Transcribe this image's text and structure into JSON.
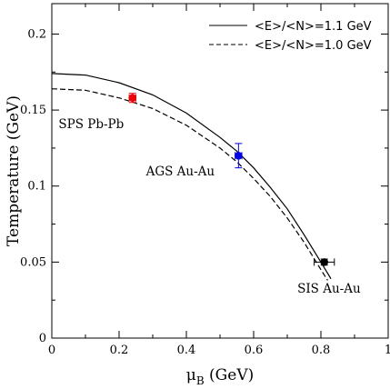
{
  "chart_data": {
    "type": "line",
    "xlabel": "μB (GeV)",
    "xlabel_main": "μ",
    "xlabel_sub": "B",
    "xlabel_unit": " (GeV)",
    "ylabel": "Temperature (GeV)",
    "xlim": [
      0,
      1
    ],
    "ylim": [
      0,
      0.22
    ],
    "xticks": [
      "0",
      "0.2",
      "0.4",
      "0.6",
      "0.8",
      "1"
    ],
    "xtick_values": [
      0,
      0.2,
      0.4,
      0.6,
      0.8,
      1.0
    ],
    "yticks": [
      "0",
      "0.05",
      "0.1",
      "0.15",
      "0.2"
    ],
    "ytick_values": [
      0,
      0.05,
      0.1,
      0.15,
      0.2
    ],
    "grid": false,
    "legend_position": "top-right",
    "series": [
      {
        "name": "<E>/<N>=1.1 GeV",
        "style": "solid",
        "color": "#000000",
        "x": [
          0,
          0.1,
          0.2,
          0.3,
          0.4,
          0.5,
          0.55,
          0.6,
          0.65,
          0.7,
          0.75,
          0.8,
          0.83
        ],
        "y": [
          0.174,
          0.173,
          0.168,
          0.16,
          0.148,
          0.132,
          0.123,
          0.112,
          0.099,
          0.085,
          0.068,
          0.05,
          0.039
        ]
      },
      {
        "name": "<E>/<N>=1.0 GeV",
        "style": "dashed",
        "color": "#000000",
        "x": [
          0,
          0.1,
          0.2,
          0.3,
          0.4,
          0.5,
          0.55,
          0.6,
          0.65,
          0.7,
          0.75,
          0.8,
          0.82
        ],
        "y": [
          0.164,
          0.163,
          0.158,
          0.151,
          0.14,
          0.125,
          0.116,
          0.105,
          0.093,
          0.079,
          0.063,
          0.045,
          0.038
        ]
      }
    ],
    "points": [
      {
        "label": "SPS Pb-Pb",
        "x": 0.24,
        "y": 0.158,
        "xerr": 0.01,
        "yerr": 0.003,
        "color": "#e8000b",
        "label_x": 0.02,
        "label_y": 0.138
      },
      {
        "label": "AGS Au-Au",
        "x": 0.555,
        "y": 0.12,
        "xerr": 0.01,
        "yerr": 0.008,
        "color": "#0000e0",
        "label_x": 0.28,
        "label_y": 0.107
      },
      {
        "label": "SIS Au-Au",
        "x": 0.81,
        "y": 0.05,
        "xerr": 0.03,
        "yerr": 0.002,
        "color": "#000000",
        "label_x": 0.73,
        "label_y": 0.03
      }
    ]
  }
}
